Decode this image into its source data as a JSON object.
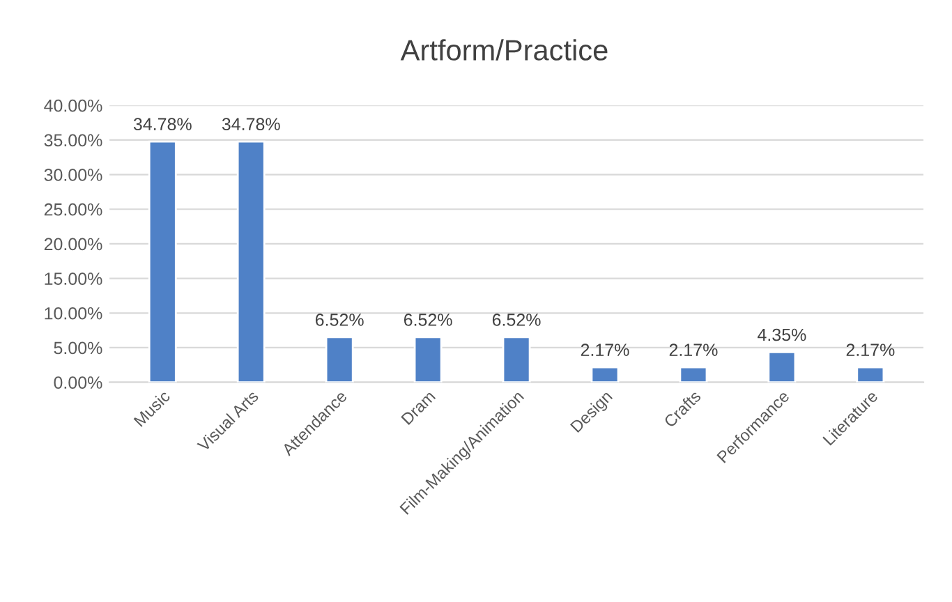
{
  "chart_data": {
    "type": "bar",
    "title": "Artform/Practice",
    "categories": [
      "Music",
      "Visual Arts",
      "Attendance",
      "Dram",
      "Film-Making/Animation",
      "Design",
      "Crafts",
      "Performance",
      "Literature"
    ],
    "values": [
      34.78,
      34.78,
      6.52,
      6.52,
      6.52,
      2.17,
      2.17,
      4.35,
      2.17
    ],
    "value_labels": [
      "34.78%",
      "34.78%",
      "6.52%",
      "6.52%",
      "6.52%",
      "2.17%",
      "2.17%",
      "4.35%",
      "2.17%"
    ],
    "color": "#4f81c7",
    "ylim": [
      0,
      40
    ],
    "yticks": [
      {
        "value": 0,
        "label": "0.00%"
      },
      {
        "value": 5,
        "label": "5.00%"
      },
      {
        "value": 10,
        "label": "10.00%"
      },
      {
        "value": 15,
        "label": "15.00%"
      },
      {
        "value": 20,
        "label": "20.00%"
      },
      {
        "value": 25,
        "label": "25.00%"
      },
      {
        "value": 30,
        "label": "30.00%"
      },
      {
        "value": 35,
        "label": "35.00%"
      },
      {
        "value": 40,
        "label": "40.00%"
      }
    ],
    "grid": "y"
  }
}
